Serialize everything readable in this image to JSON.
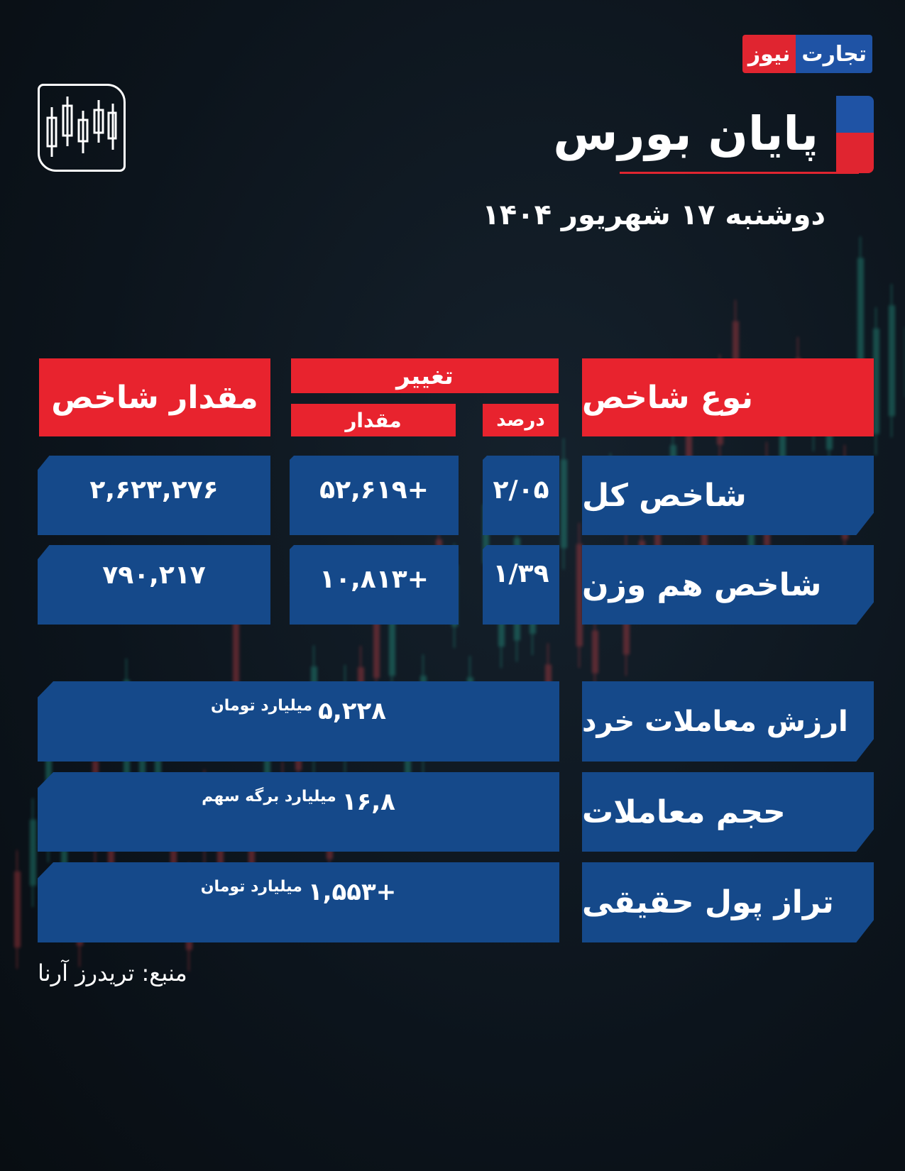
{
  "logo": {
    "part1": "تجارت",
    "part2": "نیوز"
  },
  "header": {
    "title": "پایان بورس",
    "date": "دوشنبه ۱۷ شهریور ۱۴۰۴"
  },
  "table": {
    "col_type": "نوع شاخص",
    "col_change": "تغییر",
    "col_percent": "درصد",
    "col_amount": "مقدار",
    "col_value": "مقدار شاخص",
    "rows": [
      {
        "label": "شاخص کل",
        "percent": "۲/۰۵",
        "amount": "+۵۲,۶۱۹",
        "value": "۲,۶۲۳,۲۷۶"
      },
      {
        "label": "شاخص هم وزن",
        "percent": "۱/۳۹",
        "amount": "+۱۰,۸۱۳",
        "value": "۷۹۰,۲۱۷"
      }
    ]
  },
  "stats": [
    {
      "label": "ارزش معاملات خرد",
      "value": "۵,۲۲۸",
      "unit": "میلیارد تومان"
    },
    {
      "label": "حجم معاملات",
      "value": "۱۶,۸",
      "unit": "میلیارد برگه سهم"
    },
    {
      "label": "تراز پول حقیقی",
      "value": "+۱,۵۵۳",
      "unit": "میلیارد تومان"
    }
  ],
  "source": "منبع: تریدرز آرنا",
  "colors": {
    "red": "#e8232e",
    "blue": "#15498a",
    "background": "#0c141c"
  },
  "icons": {
    "chart": "candlestick-chart-icon"
  }
}
